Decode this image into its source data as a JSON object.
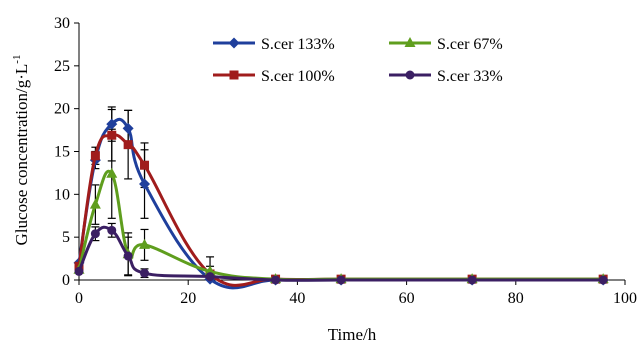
{
  "chart_data": {
    "type": "line",
    "title": "",
    "xlabel": "Time/h",
    "ylabel": "Glucose concentration/g·L",
    "ylabel_superscript": "-1",
    "xlim": [
      0,
      100
    ],
    "ylim": [
      0,
      30
    ],
    "xticks": [
      0,
      20,
      40,
      60,
      80,
      100
    ],
    "yticks": [
      0,
      5,
      10,
      15,
      20,
      25,
      30
    ],
    "grid": false,
    "legend_position": "top-right",
    "series": [
      {
        "name": "S.cer 133%",
        "color": "#1f3f9c",
        "marker": "diamond",
        "x": [
          0,
          3,
          6,
          9,
          12,
          24,
          36,
          48,
          72,
          96
        ],
        "y": [
          2.0,
          14.0,
          18.2,
          17.7,
          11.2,
          0.1,
          0.0,
          0.0,
          0.0,
          0.0
        ],
        "err": [
          0,
          1.0,
          2.0,
          2.1,
          4.0,
          0.4,
          0,
          0,
          0,
          0
        ]
      },
      {
        "name": "S.cer 100%",
        "color": "#a01c1c",
        "marker": "square",
        "x": [
          0,
          3,
          6,
          9,
          12,
          24,
          36,
          48,
          72,
          96
        ],
        "y": [
          1.6,
          14.5,
          16.9,
          15.8,
          13.4,
          0.7,
          0.1,
          0.1,
          0.1,
          0.1
        ],
        "err": [
          0,
          1.0,
          3.0,
          4.0,
          2.6,
          2.0,
          0,
          0,
          0,
          0
        ]
      },
      {
        "name": "S.cer 67%",
        "color": "#5f9e1e",
        "marker": "triangle",
        "x": [
          0,
          3,
          6,
          9,
          12,
          24,
          36,
          48,
          72,
          96
        ],
        "y": [
          1.2,
          8.8,
          12.4,
          3.0,
          4.1,
          1.0,
          0.1,
          0.1,
          0.1,
          0.1
        ],
        "err": [
          0,
          2.3,
          5.2,
          2.5,
          1.8,
          0.6,
          0,
          0,
          0,
          0
        ]
      },
      {
        "name": "S.cer 33%",
        "color": "#3b1f63",
        "marker": "circle",
        "x": [
          0,
          3,
          6,
          9,
          12,
          24,
          36,
          48,
          72,
          96
        ],
        "y": [
          1.0,
          5.4,
          5.8,
          2.8,
          0.8,
          0.4,
          0.0,
          0.0,
          0.0,
          0.0
        ],
        "err": [
          0,
          0.8,
          0.8,
          2.2,
          0.5,
          0.3,
          0,
          0,
          0,
          0
        ]
      }
    ]
  }
}
